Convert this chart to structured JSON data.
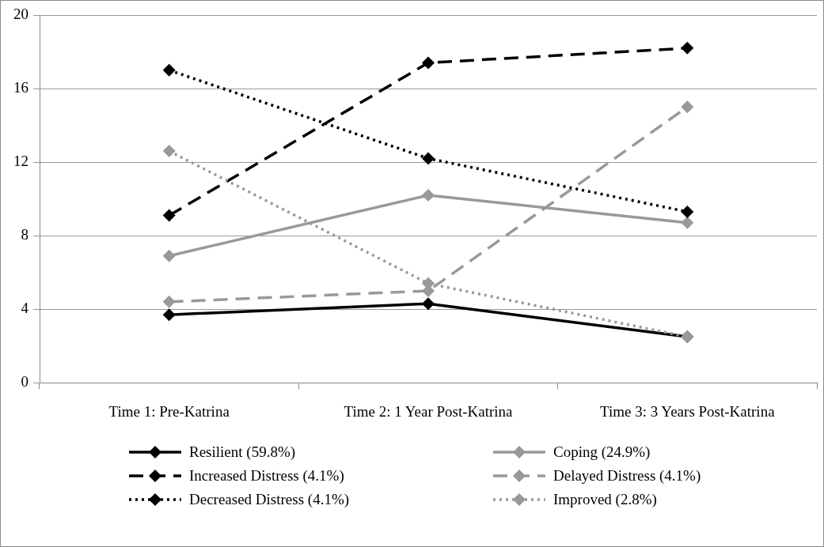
{
  "chart_data": {
    "type": "line",
    "categories": [
      "Time 1: Pre-Katrina",
      "Time 2: 1 Year Post-Katrina",
      "Time 3: 3 Years Post-Katrina"
    ],
    "ylim": [
      0,
      20
    ],
    "yticks": [
      0,
      4,
      8,
      12,
      16,
      20
    ],
    "grid": "y",
    "legend": "bottom",
    "marker": "diamond",
    "series": [
      {
        "name": "Resilient (59.8%)",
        "color": "#000000",
        "line_style": "solid",
        "values": [
          3.7,
          4.3,
          2.5
        ]
      },
      {
        "name": "Coping (24.9%)",
        "color": "#999999",
        "line_style": "solid",
        "values": [
          6.9,
          10.2,
          8.7
        ]
      },
      {
        "name": "Increased Distress (4.1%)",
        "color": "#000000",
        "line_style": "dashed",
        "values": [
          9.1,
          17.4,
          18.2
        ]
      },
      {
        "name": "Delayed Distress (4.1%)",
        "color": "#999999",
        "line_style": "dashed",
        "values": [
          4.4,
          5.0,
          15.0
        ]
      },
      {
        "name": "Decreased Distress (4.1%)",
        "color": "#000000",
        "line_style": "dotted",
        "values": [
          17.0,
          12.2,
          9.3
        ]
      },
      {
        "name": "Improved (2.8%)",
        "color": "#999999",
        "line_style": "dotted",
        "values": [
          12.6,
          5.4,
          2.5
        ]
      }
    ]
  }
}
